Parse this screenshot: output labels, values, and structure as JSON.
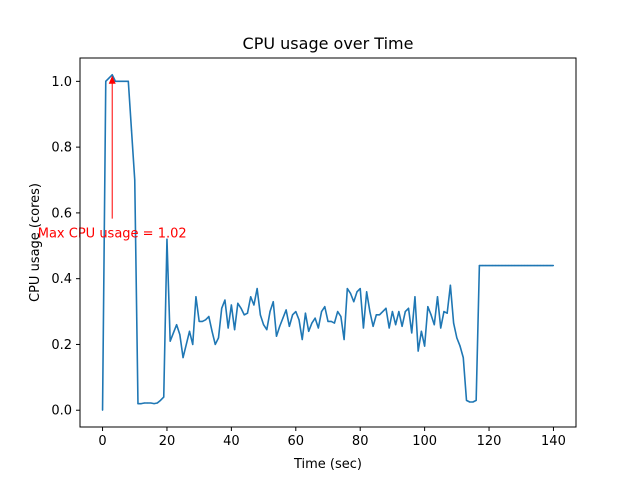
{
  "colors": {
    "series": "#1f77b4",
    "annotation": "#ff0000",
    "axes": "#000000",
    "background": "#ffffff"
  },
  "chart_data": {
    "type": "line",
    "title": "CPU usage over Time",
    "xlabel": "Time (sec)",
    "ylabel": "CPU usage (cores)",
    "xlim": [
      -7,
      147
    ],
    "ylim": [
      -0.051,
      1.071
    ],
    "xticks": [
      0,
      20,
      40,
      60,
      80,
      100,
      120,
      140
    ],
    "xtick_labels": [
      "0",
      "20",
      "40",
      "60",
      "80",
      "100",
      "120",
      "140"
    ],
    "yticks": [
      0.0,
      0.2,
      0.4,
      0.6,
      0.8,
      1.0
    ],
    "ytick_labels": [
      "0.0",
      "0.2",
      "0.4",
      "0.6",
      "0.8",
      "1.0"
    ],
    "grid": false,
    "series": [
      {
        "x": [
          0,
          1,
          2,
          3,
          4,
          5,
          6,
          7,
          8,
          9,
          10,
          11,
          12,
          13,
          14,
          15,
          16,
          17,
          18,
          19,
          20,
          21,
          22,
          23,
          24,
          25,
          26,
          27,
          28,
          29,
          30,
          31,
          32,
          33,
          34,
          35,
          36,
          37,
          38,
          39,
          40,
          41,
          42,
          43,
          44,
          45,
          46,
          47,
          48,
          49,
          50,
          51,
          52,
          53,
          54,
          55,
          56,
          57,
          58,
          59,
          60,
          61,
          62,
          63,
          64,
          65,
          66,
          67,
          68,
          69,
          70,
          71,
          72,
          73,
          74,
          75,
          76,
          77,
          78,
          79,
          80,
          81,
          82,
          83,
          84,
          85,
          86,
          87,
          88,
          89,
          90,
          91,
          92,
          93,
          94,
          95,
          96,
          97,
          98,
          99,
          100,
          101,
          102,
          103,
          104,
          105,
          106,
          107,
          108,
          109,
          110,
          111,
          112,
          113,
          114,
          115,
          116,
          117,
          118,
          119,
          120,
          121,
          122,
          123,
          124,
          125,
          126,
          127,
          128,
          129,
          130,
          131,
          132,
          133,
          134,
          135,
          136,
          137,
          138,
          139,
          140
        ],
        "values": [
          0.0,
          1.0,
          1.01,
          1.02,
          1.0,
          1.0,
          1.0,
          1.0,
          1.0,
          0.85,
          0.7,
          0.02,
          0.02,
          0.022,
          0.022,
          0.022,
          0.02,
          0.022,
          0.03,
          0.04,
          0.52,
          0.21,
          0.235,
          0.26,
          0.23,
          0.16,
          0.2,
          0.24,
          0.2,
          0.345,
          0.27,
          0.27,
          0.275,
          0.285,
          0.24,
          0.2,
          0.22,
          0.31,
          0.335,
          0.25,
          0.32,
          0.245,
          0.325,
          0.31,
          0.29,
          0.295,
          0.345,
          0.32,
          0.37,
          0.29,
          0.26,
          0.245,
          0.3,
          0.33,
          0.225,
          0.255,
          0.28,
          0.305,
          0.255,
          0.29,
          0.3,
          0.275,
          0.215,
          0.295,
          0.24,
          0.265,
          0.28,
          0.25,
          0.3,
          0.315,
          0.27,
          0.27,
          0.265,
          0.3,
          0.285,
          0.215,
          0.37,
          0.355,
          0.33,
          0.36,
          0.37,
          0.25,
          0.36,
          0.3,
          0.255,
          0.29,
          0.29,
          0.3,
          0.31,
          0.25,
          0.3,
          0.26,
          0.3,
          0.255,
          0.3,
          0.31,
          0.235,
          0.345,
          0.18,
          0.24,
          0.195,
          0.315,
          0.29,
          0.26,
          0.345,
          0.25,
          0.3,
          0.295,
          0.38,
          0.265,
          0.22,
          0.195,
          0.16,
          0.03,
          0.025,
          0.025,
          0.03,
          0.44,
          0.44,
          0.44,
          0.44,
          0.44,
          0.44,
          0.44,
          0.44,
          0.44,
          0.44,
          0.44,
          0.44,
          0.44,
          0.44,
          0.44,
          0.44,
          0.44,
          0.44,
          0.44,
          0.44,
          0.44,
          0.44,
          0.44,
          0.44
        ]
      }
    ],
    "annotations": [
      {
        "text": "Max CPU usage = 1.02",
        "xy": [
          3,
          1.02
        ],
        "xytext": [
          3,
          0.54
        ],
        "arrow_color": "#ff0000",
        "text_color": "#ff0000"
      }
    ]
  }
}
